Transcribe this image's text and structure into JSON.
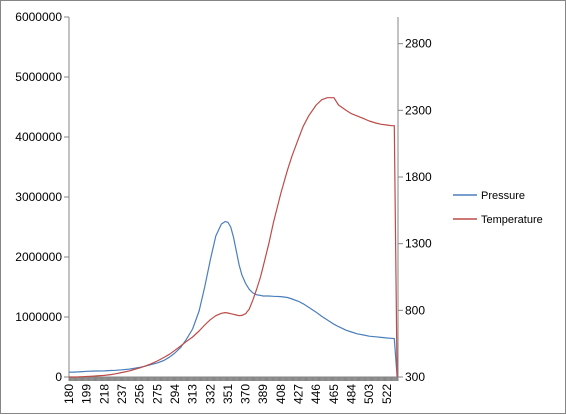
{
  "chart_data": {
    "type": "line",
    "title": "",
    "xlabel": "",
    "ylabel": "",
    "y2label": "",
    "grid": false,
    "legend_position": "right",
    "categories": [
      "180",
      "199",
      "218",
      "237",
      "256",
      "275",
      "294",
      "313",
      "332",
      "351",
      "370",
      "389",
      "408",
      "427",
      "446",
      "465",
      "484",
      "503",
      "522"
    ],
    "ylim": [
      0,
      6000000
    ],
    "yticks": [
      "0",
      "1000000",
      "2000000",
      "3000000",
      "4000000",
      "5000000",
      "6000000"
    ],
    "y2lim": [
      300,
      3000
    ],
    "y2ticks": [
      "300",
      "800",
      "1300",
      "1800",
      "2300",
      "2800"
    ],
    "series": [
      {
        "name": "Pressure",
        "axis": "left",
        "color": "#4a7ebb",
        "x": [
          180,
          185,
          190,
          195,
          199,
          205,
          210,
          218,
          225,
          230,
          237,
          245,
          250,
          256,
          262,
          268,
          275,
          282,
          288,
          294,
          300,
          306,
          313,
          320,
          326,
          332,
          338,
          344,
          348,
          351,
          354,
          357,
          360,
          363,
          366,
          370,
          374,
          378,
          382,
          386,
          389,
          395,
          400,
          408,
          415,
          420,
          427,
          432,
          438,
          446,
          452,
          458,
          465,
          470,
          478,
          484,
          490,
          497,
          503,
          510,
          516,
          522,
          527,
          530,
          533
        ],
        "values": [
          80000,
          82000,
          85000,
          90000,
          95000,
          98000,
          100000,
          102000,
          108000,
          112000,
          120000,
          132000,
          145000,
          160000,
          180000,
          205000,
          235000,
          275000,
          330000,
          400000,
          490000,
          620000,
          800000,
          1100000,
          1500000,
          1950000,
          2350000,
          2550000,
          2590000,
          2580000,
          2500000,
          2330000,
          2100000,
          1870000,
          1700000,
          1560000,
          1460000,
          1400000,
          1370000,
          1360000,
          1350000,
          1350000,
          1345000,
          1340000,
          1325000,
          1300000,
          1260000,
          1220000,
          1160000,
          1080000,
          1010000,
          950000,
          880000,
          840000,
          780000,
          750000,
          720000,
          700000,
          680000,
          670000,
          660000,
          650000,
          645000,
          640000,
          10000
        ]
      },
      {
        "name": "Temperature",
        "axis": "right",
        "color": "#be4b48",
        "x": [
          180,
          185,
          190,
          195,
          199,
          205,
          210,
          218,
          225,
          230,
          237,
          245,
          250,
          256,
          262,
          268,
          275,
          282,
          288,
          294,
          300,
          306,
          313,
          320,
          326,
          332,
          338,
          344,
          348,
          351,
          354,
          357,
          360,
          363,
          366,
          370,
          374,
          378,
          382,
          386,
          389,
          395,
          400,
          408,
          415,
          420,
          427,
          432,
          438,
          446,
          452,
          458,
          465,
          470,
          478,
          484,
          490,
          497,
          503,
          510,
          516,
          522,
          527,
          530,
          533
        ],
        "values": [
          300,
          300,
          301,
          302,
          304,
          306,
          308,
          312,
          318,
          324,
          334,
          346,
          356,
          368,
          382,
          398,
          420,
          446,
          470,
          500,
          532,
          565,
          600,
          645,
          690,
          730,
          760,
          778,
          783,
          780,
          775,
          770,
          765,
          760,
          762,
          775,
          810,
          880,
          960,
          1050,
          1130,
          1300,
          1460,
          1680,
          1850,
          1960,
          2090,
          2180,
          2260,
          2340,
          2380,
          2395,
          2395,
          2340,
          2300,
          2275,
          2258,
          2238,
          2220,
          2205,
          2195,
          2190,
          2185,
          2185,
          300
        ]
      }
    ]
  }
}
